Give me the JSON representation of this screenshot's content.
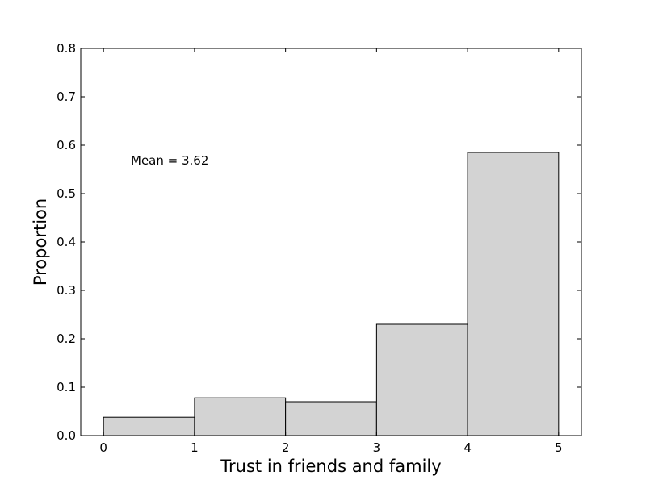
{
  "chart_data": {
    "type": "bar",
    "bins": [
      {
        "x0": 0,
        "x1": 1,
        "value": 0.038
      },
      {
        "x0": 1,
        "x1": 2,
        "value": 0.078
      },
      {
        "x0": 2,
        "x1": 3,
        "value": 0.07
      },
      {
        "x0": 3,
        "x1": 4,
        "value": 0.23
      },
      {
        "x0": 4,
        "x1": 5,
        "value": 0.585
      }
    ],
    "xlabel": "Trust in friends and family",
    "ylabel": "Proportion",
    "xlim": [
      -0.25,
      5.25
    ],
    "ylim": [
      0,
      0.8
    ],
    "xticks": [
      0,
      1,
      2,
      3,
      4,
      5
    ],
    "xtick_labels": [
      "0",
      "1",
      "2",
      "3",
      "4",
      "5"
    ],
    "yticks": [
      0,
      0.1,
      0.2,
      0.3,
      0.4,
      0.5,
      0.6,
      0.7,
      0.8
    ],
    "ytick_labels": [
      "0.0",
      "0.1",
      "0.2",
      "0.3",
      "0.4",
      "0.5",
      "0.6",
      "0.7",
      "0.8"
    ],
    "annotation": {
      "text": "Mean = 3.62",
      "x": 0.3,
      "y": 0.56
    },
    "bar_color": "#d3d3d3",
    "edge_color": "#000000",
    "grid": false
  }
}
